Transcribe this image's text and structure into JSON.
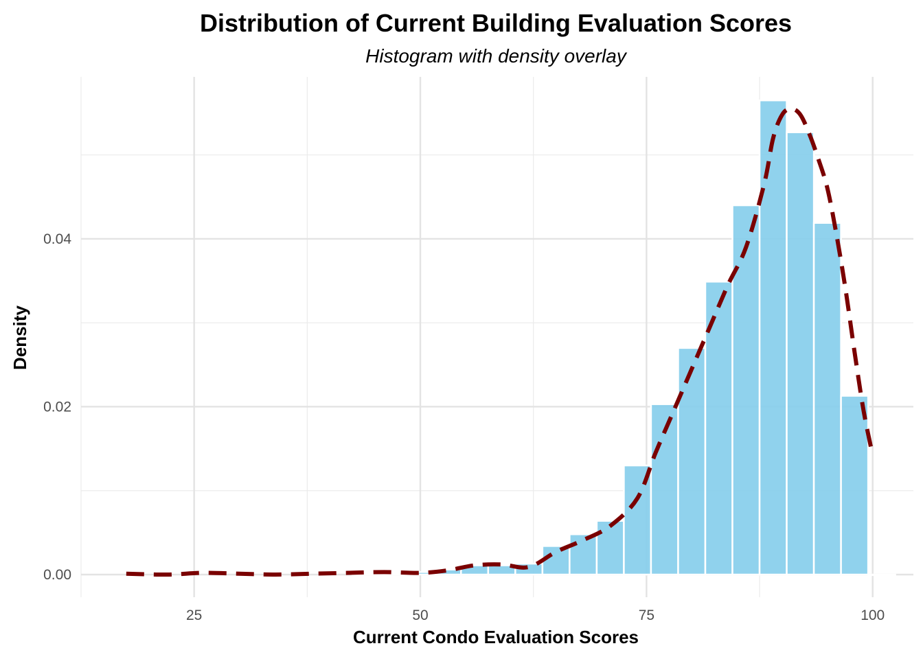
{
  "chart_data": {
    "type": "bar",
    "title": "Distribution of Current Building Evaluation Scores",
    "subtitle": "Histogram with density overlay",
    "xlabel": "Current Condo Evaluation Scores",
    "ylabel": "Density",
    "xlim": [
      12.5,
      104.5
    ],
    "ylim": [
      -0.0027,
      0.0593
    ],
    "x_ticks": [
      25,
      50,
      75,
      100
    ],
    "x_tick_labels": [
      "25",
      "50",
      "75",
      "100"
    ],
    "y_ticks": [
      0.0,
      0.02,
      0.04
    ],
    "y_tick_labels": [
      "0.00",
      "0.02",
      "0.04"
    ],
    "grid": true,
    "bar_color": "#87CEEB",
    "bar_edge_color": "#ffffff",
    "density_color": "#7a0000",
    "histogram": {
      "bin_width": 3,
      "bin_centers": [
        44,
        47,
        50,
        53,
        56,
        59,
        62,
        65,
        68,
        71,
        74,
        77,
        80,
        83,
        86,
        89,
        92,
        95,
        98,
        101
      ],
      "values": [
        0.0002,
        0.0002,
        0.0003,
        0.0006,
        0.0011,
        0.0011,
        0.0013,
        0.0034,
        0.0048,
        0.0064,
        0.013,
        0.0203,
        0.027,
        0.0349,
        0.044,
        0.0565,
        0.0527,
        0.0419,
        0.0213,
        0.0
      ]
    },
    "density": {
      "x": [
        17.5,
        22,
        26,
        30,
        34,
        38,
        42,
        46,
        50,
        53,
        56,
        59,
        62,
        65,
        68,
        71,
        74,
        76,
        78,
        80,
        82,
        84,
        86,
        88,
        89,
        90,
        91,
        92,
        93,
        94,
        95,
        96,
        97,
        98,
        99,
        100
      ],
      "y": [
        0.0001,
        0.0,
        0.0002,
        0.0001,
        0.0,
        0.0001,
        0.0002,
        0.0003,
        0.0002,
        0.0005,
        0.0011,
        0.0012,
        0.0009,
        0.0027,
        0.0041,
        0.0058,
        0.0091,
        0.0145,
        0.0195,
        0.0245,
        0.0295,
        0.0345,
        0.039,
        0.0465,
        0.052,
        0.0548,
        0.0555,
        0.0548,
        0.0525,
        0.0495,
        0.046,
        0.0405,
        0.034,
        0.0265,
        0.0195,
        0.0142
      ]
    }
  }
}
